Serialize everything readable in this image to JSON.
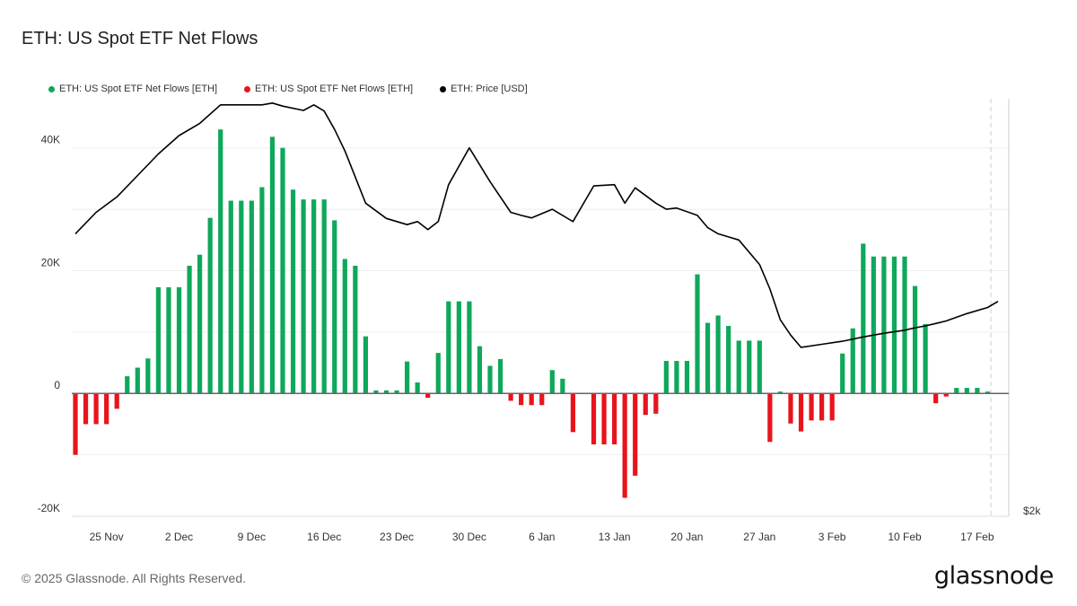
{
  "header": {
    "title": "ETH: US Spot ETF Net Flows"
  },
  "legend": [
    {
      "label": "ETH: US Spot ETF Net Flows [ETH]",
      "color": "#0ea85a"
    },
    {
      "label": "ETH: US Spot ETF Net Flows [ETH]",
      "color": "#e8141c"
    },
    {
      "label": "ETH: Price [USD]",
      "color": "#000000"
    }
  ],
  "footer": {
    "copyright": "© 2025 Glassnode. All Rights Reserved.",
    "logo": "glassnode"
  },
  "chart_data": {
    "type": "bar",
    "title": "ETH: US Spot ETF Net Flows",
    "xlabel": "",
    "ylabel": "",
    "ylim": [
      -20000,
      48000
    ],
    "y_ticks": [
      {
        "value": 40000,
        "label": "40K"
      },
      {
        "value": 20000,
        "label": "20K"
      },
      {
        "value": 0,
        "label": "0"
      },
      {
        "value": -20000,
        "label": "-20K"
      }
    ],
    "x_ticks": [
      {
        "index": 3,
        "label": "25 Nov"
      },
      {
        "index": 10,
        "label": "2 Dec"
      },
      {
        "index": 17,
        "label": "9 Dec"
      },
      {
        "index": 24,
        "label": "16 Dec"
      },
      {
        "index": 31,
        "label": "23 Dec"
      },
      {
        "index": 38,
        "label": "30 Dec"
      },
      {
        "index": 45,
        "label": "6 Jan"
      },
      {
        "index": 52,
        "label": "13 Jan"
      },
      {
        "index": 59,
        "label": "20 Jan"
      },
      {
        "index": 66,
        "label": "27 Jan"
      },
      {
        "index": 73,
        "label": "3 Feb"
      },
      {
        "index": 80,
        "label": "10 Feb"
      },
      {
        "index": 87,
        "label": "17 Feb"
      }
    ],
    "right_axis_label": "$2k",
    "positive_color": "#0ea85a",
    "negative_color": "#e8141c",
    "price_color": "#000000",
    "grid": true,
    "legend_position": "top-left",
    "flows": [
      -10000,
      -5000,
      -5000,
      -5000,
      -2500,
      2800,
      4200,
      5700,
      17300,
      17300,
      17300,
      20800,
      22600,
      28600,
      43000,
      31400,
      31400,
      31400,
      33600,
      41800,
      40000,
      33200,
      31600,
      31600,
      31600,
      28200,
      21900,
      20800,
      9300,
      500,
      500,
      500,
      5200,
      1800,
      -700,
      6600,
      15000,
      15000,
      15000,
      7700,
      4500,
      5600,
      -1200,
      -1900,
      -1900,
      -1900,
      3800,
      2400,
      -6300,
      0,
      -8300,
      -8300,
      -8300,
      -17000,
      -13400,
      -3500,
      -3300,
      5300,
      5300,
      5300,
      19400,
      11500,
      12700,
      11000,
      8600,
      8600,
      8600,
      -7900,
      300,
      -4900,
      -6200,
      -4400,
      -4400,
      -4400,
      6500,
      10600,
      24400,
      22300,
      22300,
      22300,
      22300,
      17500,
      11300,
      -1600,
      -500,
      900,
      900,
      900,
      300
    ],
    "price_x": [
      0,
      2,
      4,
      6,
      8,
      10,
      12,
      14,
      16,
      18,
      19,
      20,
      22,
      23,
      24,
      25,
      26,
      28,
      30,
      32,
      33,
      34,
      35,
      36,
      38,
      40,
      42,
      43,
      44,
      46,
      48,
      50,
      52,
      53,
      54,
      56,
      57,
      58,
      60,
      61,
      62,
      63,
      64,
      66,
      67,
      68,
      69,
      70,
      72,
      74,
      76,
      78,
      80,
      81,
      82,
      83,
      84,
      86,
      88,
      89
    ],
    "price_y": [
      26000,
      29500,
      32000,
      35500,
      39000,
      42000,
      44000,
      47000,
      47000,
      47000,
      47300,
      46800,
      46100,
      47000,
      46000,
      43000,
      39500,
      31000,
      28500,
      27500,
      28000,
      26700,
      28000,
      34000,
      40000,
      34500,
      29500,
      29000,
      28600,
      30000,
      28000,
      33800,
      34000,
      31000,
      33500,
      31000,
      30000,
      30200,
      29000,
      27000,
      26000,
      25500,
      25000,
      21000,
      17000,
      12000,
      9500,
      7500,
      8000,
      8500,
      9200,
      9800,
      10300,
      10700,
      11000,
      11400,
      11800,
      13000,
      14000,
      15000
    ],
    "price_scale": {
      "min": -20000,
      "max": 48000
    }
  }
}
